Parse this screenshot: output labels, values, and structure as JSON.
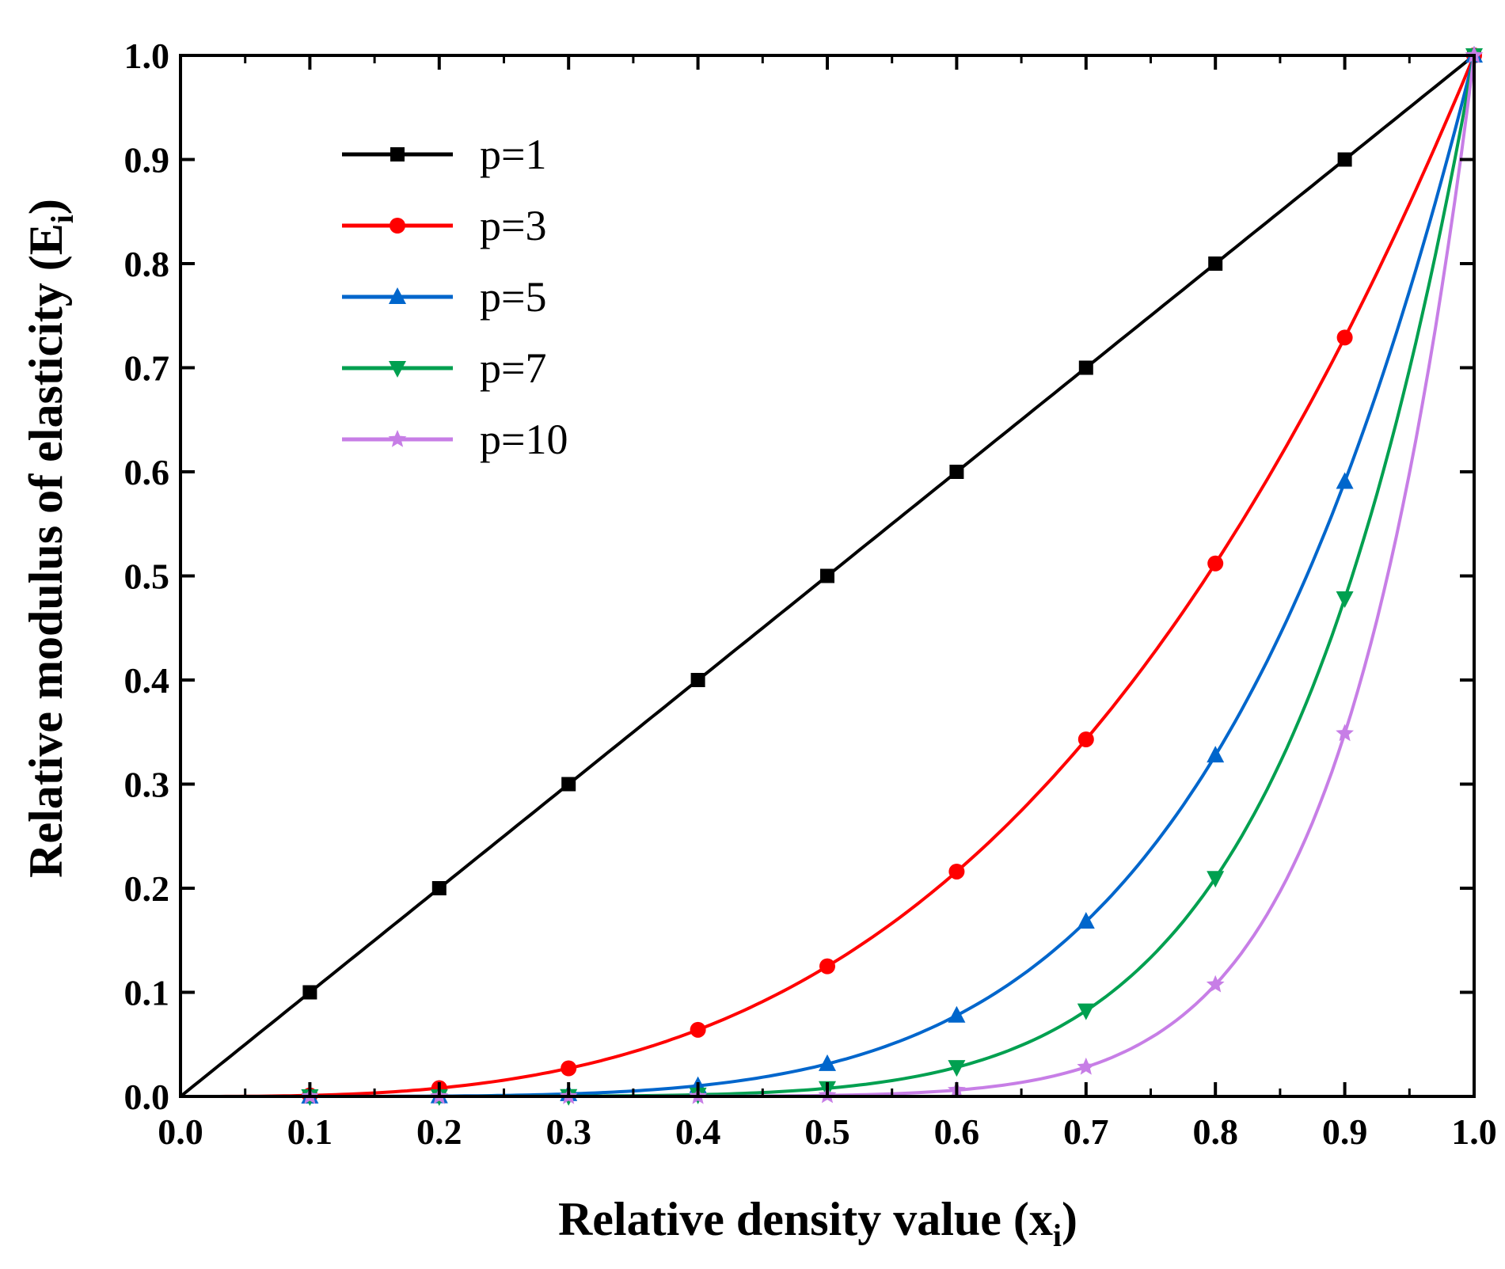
{
  "chart_data": {
    "type": "line",
    "title": "",
    "xlabel": "Relative density value (x",
    "xlabel_subscript": "i",
    "xlabel_suffix": ")",
    "ylabel": "Relative modulus of elasticity (E",
    "ylabel_subscript": "i",
    "ylabel_suffix": ")",
    "xlim": [
      0.0,
      1.0
    ],
    "ylim": [
      0.0,
      1.0
    ],
    "x_ticks": [
      "0.0",
      "0.1",
      "0.2",
      "0.3",
      "0.4",
      "0.5",
      "0.6",
      "0.7",
      "0.8",
      "0.9",
      "1.0"
    ],
    "y_ticks": [
      "0.0",
      "0.1",
      "0.2",
      "0.3",
      "0.4",
      "0.5",
      "0.6",
      "0.7",
      "0.8",
      "0.9",
      "1.0"
    ],
    "grid": false,
    "legend_position": "top-left",
    "x": [
      0.0,
      0.1,
      0.2,
      0.3,
      0.4,
      0.5,
      0.6,
      0.7,
      0.8,
      0.9,
      1.0
    ],
    "series": [
      {
        "name": "p=1",
        "color": "#000000",
        "marker": "square",
        "values": [
          0.0,
          0.1,
          0.2,
          0.3,
          0.4,
          0.5,
          0.6,
          0.7,
          0.8,
          0.9,
          1.0
        ]
      },
      {
        "name": "p=3",
        "color": "#ff0000",
        "marker": "circle",
        "values": [
          0.0,
          0.001,
          0.008,
          0.027,
          0.064,
          0.125,
          0.216,
          0.343,
          0.512,
          0.729,
          1.0
        ]
      },
      {
        "name": "p=5",
        "color": "#0066cc",
        "marker": "triangle-up",
        "values": [
          0.0,
          0.0,
          0.0003,
          0.0024,
          0.0102,
          0.0313,
          0.0778,
          0.1681,
          0.3277,
          0.5905,
          1.0
        ]
      },
      {
        "name": "p=7",
        "color": "#00a050",
        "marker": "triangle-down",
        "values": [
          0.0,
          0.0,
          0.0,
          0.0002,
          0.0016,
          0.0078,
          0.028,
          0.0824,
          0.2097,
          0.4783,
          1.0
        ]
      },
      {
        "name": "p=10",
        "color": "#c77ee6",
        "marker": "star",
        "values": [
          0.0,
          0.0,
          0.0,
          0.0,
          0.0001,
          0.001,
          0.006,
          0.0282,
          0.1074,
          0.3487,
          1.0
        ]
      }
    ]
  }
}
